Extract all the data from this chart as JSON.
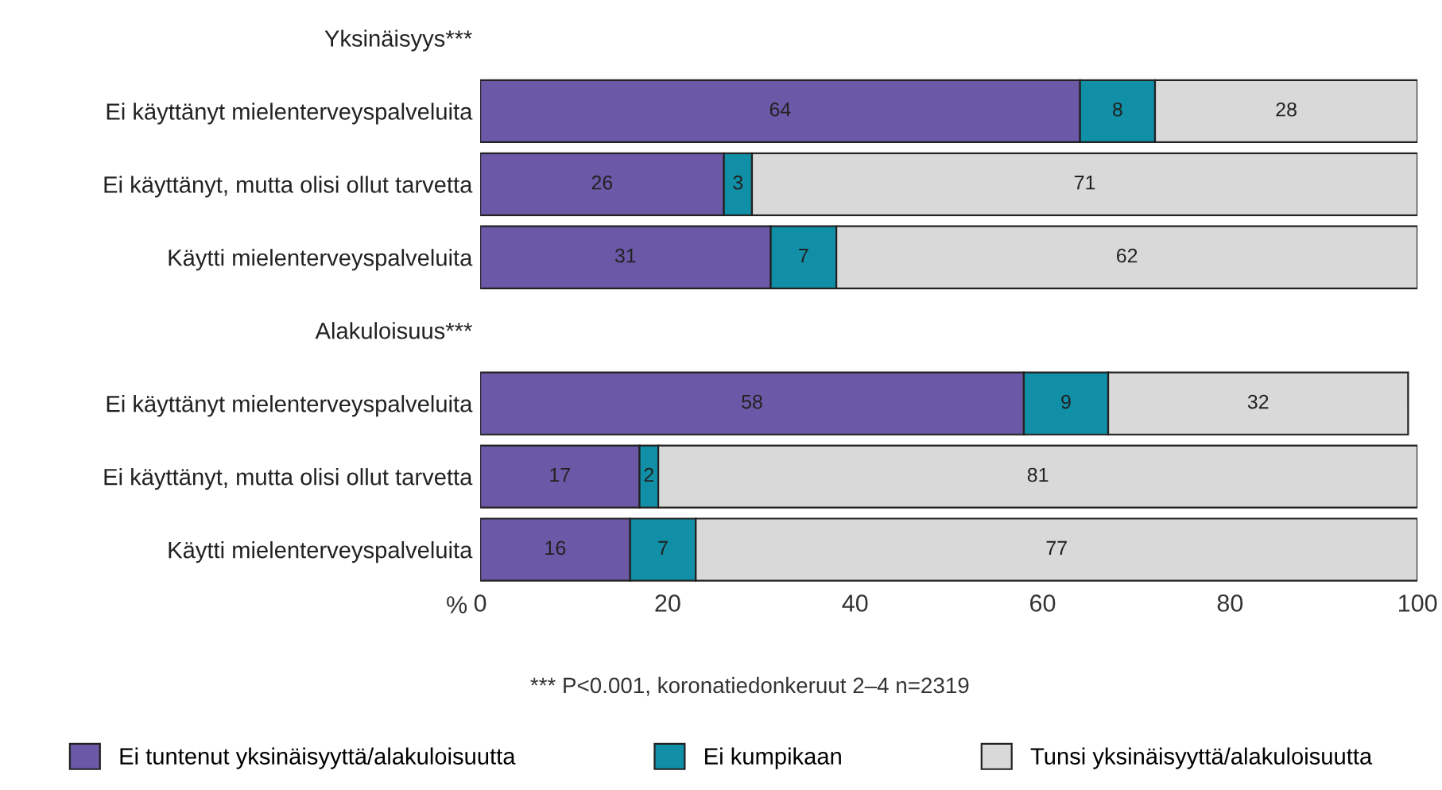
{
  "chart_data": {
    "type": "bar",
    "orientation": "horizontal",
    "stacked": true,
    "categories": [
      "Yksinäisyys***",
      "Ei käyttänyt mielenterveyspalveluita",
      "Ei käyttänyt, mutta olisi ollut tarvetta",
      "Käytti mielenterveyspalveluita",
      "Alakuloisuus***",
      "Ei käyttänyt mielenterveyspalveluita",
      "Ei käyttänyt, mutta olisi ollut tarvetta",
      "Käytti mielenterveyspalveluita"
    ],
    "series": [
      {
        "name": "Ei tuntenut yksinäisyyttä/alakuloisuutta",
        "color": "#6b58a6",
        "values": [
          null,
          64,
          26,
          31,
          null,
          58,
          17,
          16
        ]
      },
      {
        "name": "Ei kumpikaan",
        "color": "#108fa6",
        "values": [
          null,
          8,
          3,
          7,
          null,
          9,
          2,
          7
        ]
      },
      {
        "name": "Tunsi yksinäisyyttä/alakuloisuutta",
        "color": "#d9d9d9",
        "values": [
          null,
          28,
          71,
          62,
          null,
          32,
          81,
          77
        ]
      }
    ],
    "xlabel": "%",
    "xlim": [
      0,
      100
    ],
    "xticks": [
      0,
      20,
      40,
      60,
      80,
      100
    ],
    "data_labels": true,
    "legend": "bottom",
    "grid": false,
    "annotations": [
      "*** P<0.001, koronatiedonkeruut 2–4 n=2319"
    ]
  }
}
